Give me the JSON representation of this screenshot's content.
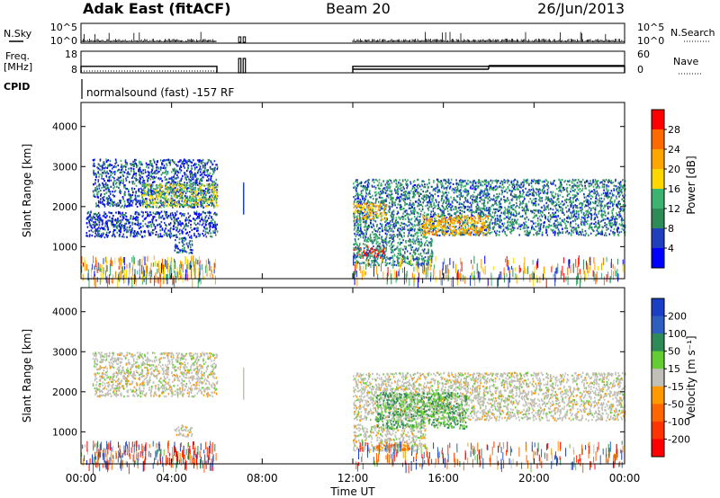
{
  "header": {
    "station": "Adak East (fitACF)",
    "beam": "Beam 20",
    "date": "26/Jun/2013"
  },
  "side_labels": {
    "nsky": "N.Sky",
    "freq_line1": "Freq.",
    "freq_line2": "[MHz]",
    "cpid": "CPID",
    "nsearch": "N.Search",
    "nave": "Nave"
  },
  "cpid_text": "normalsound (fast) -157 RF",
  "x_axis": {
    "title": "Time UT",
    "ticks": [
      "00:00",
      "04:00",
      "08:00",
      "12:00",
      "16:00",
      "20:00",
      "00:00"
    ]
  },
  "nsky_axis": {
    "left_ticks": [
      "10^5",
      "10^0"
    ],
    "right_ticks": [
      "10^5",
      "10^0"
    ]
  },
  "freq_axis": {
    "left_ticks": [
      "18",
      "8"
    ],
    "right_ticks": [
      "60",
      "0"
    ]
  },
  "power_panel": {
    "ylabel": "Slant Range [km]",
    "yticks": [
      "4000",
      "3000",
      "2000",
      "1000"
    ],
    "colorbar_label": "Power [dB]",
    "colorbar_ticks": [
      "28",
      "24",
      "20",
      "16",
      "12",
      "8",
      "4"
    ],
    "colorbar_colors": [
      "#ff0000",
      "#ff6a00",
      "#ffa500",
      "#ffd700",
      "#3cb371",
      "#2e8b57",
      "#1f3fbf",
      "#0000ff"
    ]
  },
  "velocity_panel": {
    "ylabel": "Slant Range [km]",
    "yticks": [
      "4000",
      "3000",
      "2000",
      "1000"
    ],
    "colorbar_label": "Velocity [m s⁻¹]",
    "colorbar_ticks": [
      "200",
      "100",
      "50",
      "15",
      "-15",
      "-50",
      "-100",
      "-200"
    ],
    "colorbar_colors": [
      "#1a3fc4",
      "#2e5fbf",
      "#2e8b57",
      "#66cc33",
      "#c0c0b8",
      "#ff9900",
      "#ff6600",
      "#ff3300",
      "#ff0000"
    ]
  },
  "chart_data": {
    "type": "heatmap",
    "title": "Adak East (fitACF)   Beam 20   26/Jun/2013",
    "xlabel": "Time UT",
    "ylabel": "Slant Range [km]",
    "x_range_hours": [
      0,
      24
    ],
    "y_range_km": [
      200,
      4600
    ],
    "data_gaps_hours": [
      [
        6,
        7
      ],
      [
        7.2,
        12
      ]
    ],
    "power_regions": [
      {
        "t0": 0.5,
        "t1": 6,
        "r0": 2000,
        "r1": 3200,
        "power_db": 6
      },
      {
        "t0": 2.7,
        "t1": 6,
        "r0": 2000,
        "r1": 2600,
        "power_db": 14
      },
      {
        "t0": 0.2,
        "t1": 6,
        "r0": 1250,
        "r1": 1900,
        "power_db": 5
      },
      {
        "t0": 4.1,
        "t1": 4.9,
        "r0": 850,
        "r1": 1250,
        "power_db": 6
      },
      {
        "t0": 12,
        "t1": 24,
        "r0": 1300,
        "r1": 2700,
        "power_db": 8
      },
      {
        "t0": 12,
        "t1": 13.5,
        "r0": 1700,
        "r1": 2100,
        "power_db": 18
      },
      {
        "t0": 15,
        "t1": 18,
        "r0": 1300,
        "r1": 1800,
        "power_db": 20
      },
      {
        "t0": 12,
        "t1": 13.4,
        "r0": 750,
        "r1": 1050,
        "power_db": 28
      },
      {
        "t0": 12,
        "t1": 15.5,
        "r0": 550,
        "r1": 1300,
        "power_db": 9
      }
    ],
    "velocity_regions": [
      {
        "t0": 0.5,
        "t1": 6,
        "r0": 1900,
        "r1": 3000,
        "velocity": 0
      },
      {
        "t0": 4.1,
        "t1": 4.9,
        "r0": 900,
        "r1": 1200,
        "velocity": 0
      },
      {
        "t0": 12,
        "t1": 24,
        "r0": 1300,
        "r1": 2500,
        "velocity": 0
      },
      {
        "t0": 12,
        "t1": 15.2,
        "r0": 550,
        "r1": 1200,
        "velocity": 0
      },
      {
        "t0": 13,
        "t1": 14.5,
        "r0": 550,
        "r1": 700,
        "velocity": -50
      },
      {
        "t0": 13,
        "t1": 17,
        "r0": 1100,
        "r1": 2000,
        "velocity": 30
      }
    ],
    "frequency_mhz": [
      {
        "t0": 0,
        "t1": 6,
        "value": 11
      },
      {
        "t0": 12,
        "t1": 24,
        "value": 11
      }
    ],
    "nave": [
      {
        "t0": 0,
        "t1": 6,
        "value": 20
      },
      {
        "t0": 12,
        "t1": 18,
        "value": 10
      },
      {
        "t0": 18,
        "t1": 24,
        "value": 20
      }
    ]
  }
}
